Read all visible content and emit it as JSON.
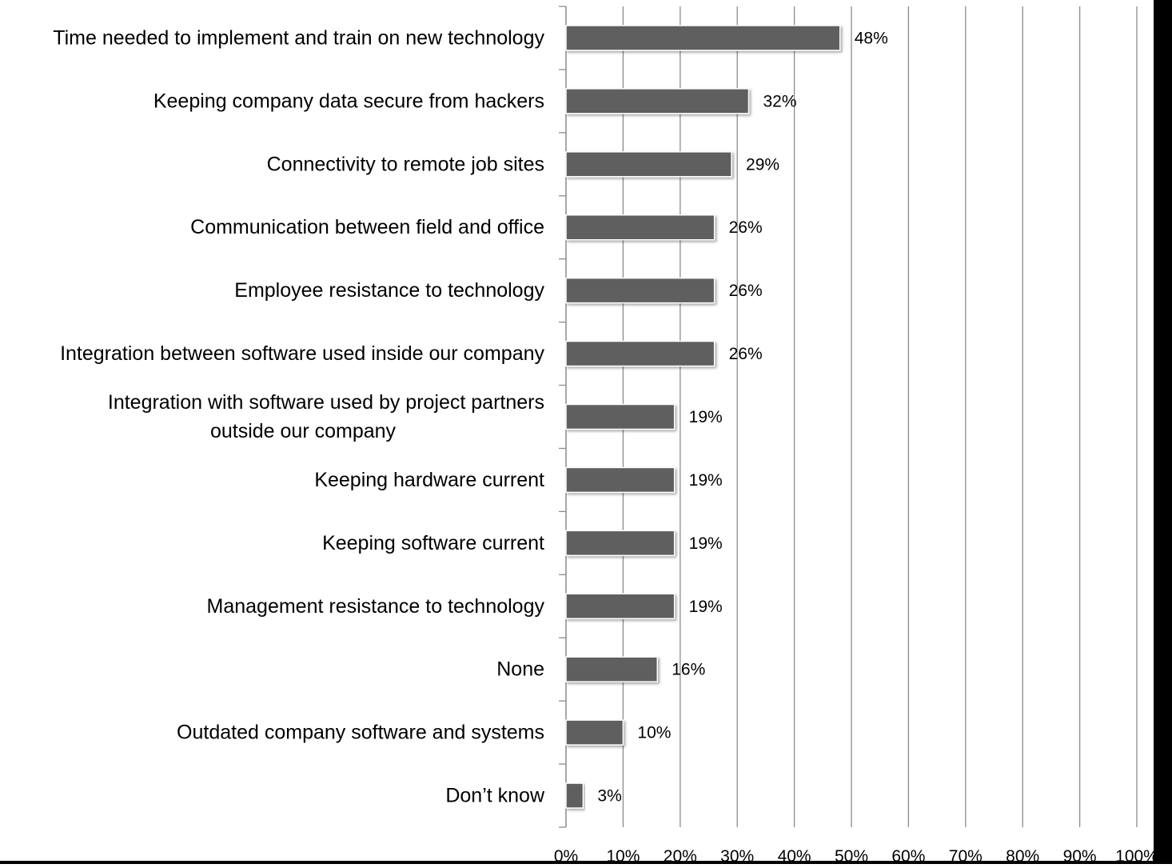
{
  "chart_data": {
    "type": "bar",
    "orientation": "horizontal",
    "title": "",
    "xlabel": "",
    "ylabel": "",
    "categories": [
      [
        "Time needed to implement and train on new technology"
      ],
      [
        "Keeping company data secure from hackers"
      ],
      [
        "Connectivity to remote job sites"
      ],
      [
        "Communication between field and office"
      ],
      [
        "Employee resistance to technology"
      ],
      [
        "Integration between software used inside our company"
      ],
      [
        "Integration with software used by project partners",
        "outside our company"
      ],
      [
        "Keeping hardware current"
      ],
      [
        "Keeping software current"
      ],
      [
        "Management resistance to technology"
      ],
      [
        "None"
      ],
      [
        "Outdated company software and systems"
      ],
      [
        "Don’t know"
      ]
    ],
    "values": [
      48,
      32,
      29,
      26,
      26,
      26,
      19,
      19,
      19,
      19,
      16,
      10,
      3
    ],
    "value_labels": [
      "48%",
      "32%",
      "29%",
      "26%",
      "26%",
      "26%",
      "19%",
      "19%",
      "19%",
      "19%",
      "16%",
      "10%",
      "3%"
    ],
    "xlim": [
      0,
      100
    ],
    "x_ticks": [
      0,
      10,
      20,
      30,
      40,
      50,
      60,
      70,
      80,
      90,
      100
    ],
    "x_tick_labels": [
      "0%",
      "10%",
      "20%",
      "30%",
      "40%",
      "50%",
      "60%",
      "70%",
      "80%",
      "90%",
      "100%"
    ],
    "grid": "vertical",
    "legend": "none",
    "colors": {
      "bar": "#5f5f5f",
      "bar_outline": "#ffffff",
      "gridline": "#8c8c8c",
      "axis": "#8c8c8c"
    }
  }
}
